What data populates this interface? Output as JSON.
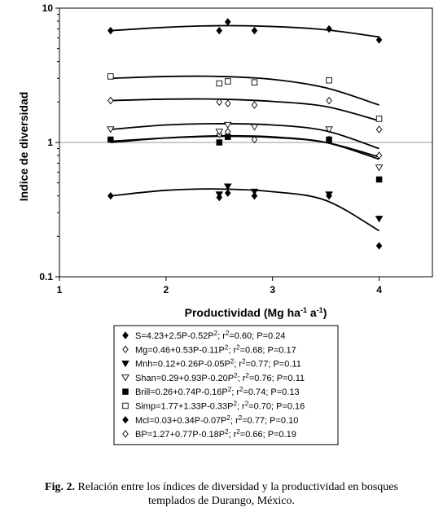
{
  "chart_data": {
    "type": "scatter",
    "title": "",
    "ylabel": "Indice de diversidad",
    "xlabel_parts": [
      "Productividad (Mg ha",
      "-1",
      " a",
      "-1",
      ")"
    ],
    "xlim": [
      1,
      4.5
    ],
    "ylim": [
      0.1,
      10
    ],
    "yscale": "log",
    "grid": {
      "horizontal": true,
      "vertical": false
    },
    "xticks": [
      {
        "value": 1,
        "label": "1"
      },
      {
        "value": 2,
        "label": "2"
      },
      {
        "value": 3,
        "label": "3"
      },
      {
        "value": 4,
        "label": "4"
      }
    ],
    "yticks": [
      {
        "value": 0.1,
        "label": "0.1"
      },
      {
        "value": 1,
        "label": "1"
      },
      {
        "value": 10,
        "label": "10"
      }
    ],
    "legend_placement": "bottom",
    "series": [
      {
        "marker": "diamond-filled",
        "legend": {
          "name": "S",
          "eq": "=4.23+2.5P-0.52P",
          "fit": "; r",
          "stats": "=0.60; P=0.24"
        },
        "x": [
          1.48,
          2.5,
          2.58,
          2.83,
          3.53,
          4.0
        ],
        "y": [
          6.8,
          6.8,
          7.9,
          6.8,
          7.0,
          5.8
        ],
        "curve": [
          [
            1.48,
            6.8
          ],
          [
            2.0,
            7.2
          ],
          [
            2.5,
            7.4
          ],
          [
            3.0,
            7.3
          ],
          [
            3.5,
            6.9
          ],
          [
            4.0,
            6.1
          ]
        ]
      },
      {
        "marker": "diamond-open",
        "legend": {
          "name": "Mg",
          "eq": "=0.46+0.53P-0.11P",
          "fit": "; r",
          "stats": "=0.68; P=0.17"
        },
        "x": [
          2.5,
          2.58,
          2.83,
          3.53,
          4.0
        ],
        "y": [
          1.15,
          1.2,
          1.05,
          1.05,
          0.8
        ],
        "curve": [
          [
            1.48,
            1.0
          ],
          [
            2.0,
            1.08
          ],
          [
            2.5,
            1.12
          ],
          [
            3.0,
            1.1
          ],
          [
            3.5,
            1.0
          ],
          [
            4.0,
            0.75
          ]
        ]
      },
      {
        "marker": "triangle-down-filled",
        "legend": {
          "name": "Mnh",
          "eq": "=0.12+0.26P-0.05P",
          "fit": "; r",
          "stats": "=0.77; P=0.11"
        },
        "x": [
          2.5,
          2.58,
          2.83,
          3.53,
          4.0
        ],
        "y": [
          0.41,
          0.47,
          0.43,
          0.41,
          0.27
        ],
        "curve": [
          [
            1.48,
            0.4
          ],
          [
            2.0,
            0.44
          ],
          [
            2.5,
            0.45
          ],
          [
            3.0,
            0.43
          ],
          [
            3.5,
            0.37
          ],
          [
            4.0,
            0.22
          ]
        ]
      },
      {
        "marker": "triangle-down-open",
        "legend": {
          "name": "Shan",
          "eq": "=0.29+0.93P-0.20P",
          "fit": "; r",
          "stats": "=0.76; P=0.11"
        },
        "x": [
          1.48,
          2.5,
          2.58,
          2.83,
          3.53,
          4.0
        ],
        "y": [
          1.25,
          1.2,
          1.35,
          1.3,
          1.25,
          0.65
        ],
        "curve": [
          [
            1.48,
            1.25
          ],
          [
            2.0,
            1.35
          ],
          [
            2.5,
            1.38
          ],
          [
            3.0,
            1.35
          ],
          [
            3.5,
            1.22
          ],
          [
            4.0,
            0.9
          ]
        ]
      },
      {
        "marker": "square-filled",
        "legend": {
          "name": "Brill",
          "eq": "=0.26+0.74P-0.16P",
          "fit": "; r",
          "stats": "=0.74; P=0.13"
        },
        "x": [
          1.48,
          2.5,
          2.58,
          3.53,
          4.0
        ],
        "y": [
          1.05,
          1.0,
          1.1,
          1.05,
          0.53
        ],
        "curve": [
          [
            1.48,
            1.02
          ],
          [
            2.0,
            1.08
          ],
          [
            2.5,
            1.11
          ],
          [
            3.0,
            1.09
          ],
          [
            3.5,
            1.0
          ],
          [
            4.0,
            0.78
          ]
        ]
      },
      {
        "marker": "square-open",
        "legend": {
          "name": "Simp",
          "eq": "=1.77+1.33P-0.33P",
          "fit": "; r",
          "stats": "=0.70; P=0.16"
        },
        "x": [
          1.48,
          2.5,
          2.58,
          2.83,
          3.53,
          4.0
        ],
        "y": [
          3.1,
          2.75,
          2.85,
          2.8,
          2.9,
          1.5
        ],
        "curve": [
          [
            1.48,
            3.0
          ],
          [
            2.0,
            3.1
          ],
          [
            2.5,
            3.1
          ],
          [
            3.0,
            2.95
          ],
          [
            3.5,
            2.55
          ],
          [
            4.0,
            1.9
          ]
        ]
      },
      {
        "marker": "diamond-filled",
        "legend": {
          "name": "Mcl",
          "eq": "=0.03+0.34P-0.07P",
          "fit": "; r",
          "stats": "=0.77; P=0.10"
        },
        "x": [
          1.48,
          2.5,
          2.58,
          2.83,
          3.53,
          4.0
        ],
        "y": [
          0.4,
          0.39,
          0.42,
          0.4,
          0.4,
          0.17
        ],
        "curve": []
      },
      {
        "marker": "diamond-open",
        "legend": {
          "name": "BP",
          "eq": "=1.27+0.77P-0.18P",
          "fit": "; r",
          "stats": "=0.66; P=0.19"
        },
        "x": [
          1.48,
          2.5,
          2.58,
          2.83,
          3.53,
          4.0
        ],
        "y": [
          2.05,
          2.0,
          1.95,
          1.9,
          2.05,
          1.25
        ],
        "curve": [
          [
            1.48,
            2.05
          ],
          [
            2.0,
            2.1
          ],
          [
            2.5,
            2.1
          ],
          [
            3.0,
            2.02
          ],
          [
            3.5,
            1.85
          ],
          [
            4.0,
            1.45
          ]
        ]
      }
    ]
  },
  "caption": {
    "label": "Fig. 2.",
    "line1": " Relación entre los índices de diversidad y la productividad en bosques",
    "line2": "templados de Durango, México."
  }
}
